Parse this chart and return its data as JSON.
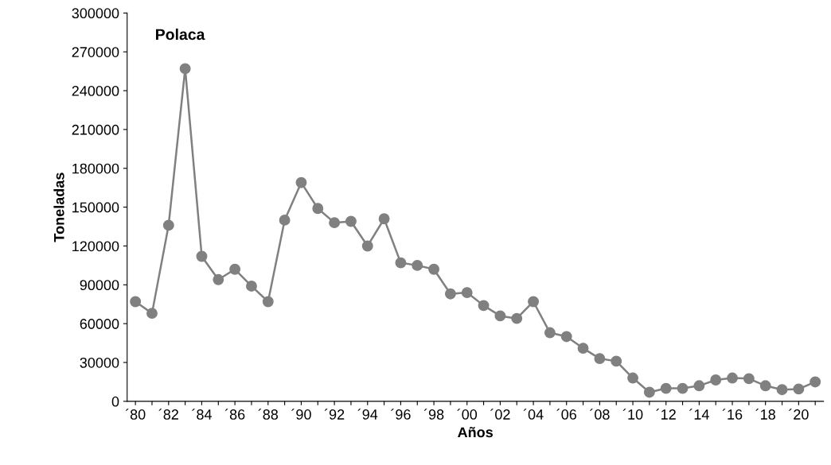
{
  "chart_data": {
    "type": "line",
    "title": "Polaca",
    "xlabel": "Años",
    "ylabel": "Toneladas",
    "categories": [
      "´80",
      null,
      "´82",
      null,
      "´84",
      null,
      "´86",
      null,
      "´88",
      null,
      "´90",
      null,
      "´92",
      null,
      "´94",
      null,
      "´96",
      null,
      "´98",
      null,
      "´00",
      null,
      "´02",
      null,
      "´04",
      null,
      "´06",
      null,
      "´08",
      null,
      "´10",
      null,
      "´12",
      null,
      "´14",
      null,
      "´16",
      null,
      "´18",
      null,
      "´20",
      null
    ],
    "series": [
      {
        "color": "#808080",
        "values": [
          77000,
          68000,
          136000,
          257000,
          112000,
          94000,
          102000,
          89000,
          77000,
          140000,
          169000,
          149000,
          138000,
          139000,
          120000,
          141000,
          107000,
          105000,
          102000,
          83000,
          84000,
          74000,
          66000,
          64000,
          77000,
          53000,
          50000,
          41000,
          33000,
          31000,
          18000,
          7000,
          10000,
          10000,
          12000,
          16500,
          18000,
          17500,
          12000,
          9000,
          9500,
          15000
        ]
      }
    ],
    "ylim": [
      0,
      300000
    ],
    "yticks": [
      0,
      30000,
      60000,
      90000,
      120000,
      150000,
      180000,
      210000,
      240000,
      270000,
      300000
    ],
    "marker": "circle",
    "line_style": "solid",
    "grid": false,
    "legend": false
  }
}
